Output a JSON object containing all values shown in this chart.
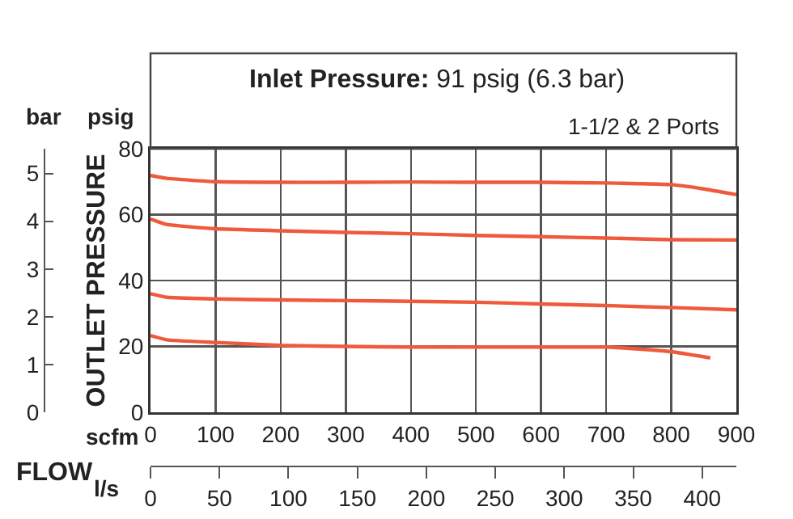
{
  "chart_data": {
    "type": "line",
    "title": "Inlet Pressure: 91 psig (6.3 bar)",
    "subtitle": "1-1/2 & 2 Ports",
    "xlabel": "scfm",
    "x2label": "l/s",
    "ylabel": "OUTLET PRESSURE",
    "y2label": "bar",
    "annotations": [
      "psig",
      "FLOW"
    ],
    "series": [
      {
        "color": "#f05a3c",
        "x": [
          0,
          25,
          100,
          200,
          300,
          400,
          500,
          600,
          700,
          750,
          800,
          850,
          900
        ],
        "values": [
          71.9,
          71,
          70,
          69.8,
          69.8,
          69.9,
          69.8,
          69.8,
          69.6,
          69.4,
          69.1,
          67.8,
          66.1
        ]
      },
      {
        "color": "#f05a3c",
        "x": [
          0,
          25,
          100,
          200,
          300,
          400,
          500,
          600,
          700,
          800,
          900
        ],
        "values": [
          58.7,
          57,
          55.7,
          55.1,
          54.6,
          54.2,
          53.7,
          53.3,
          52.9,
          52.4,
          52.3
        ]
      },
      {
        "color": "#f05a3c",
        "x": [
          0,
          25,
          100,
          200,
          300,
          400,
          500,
          600,
          700,
          800,
          900
        ],
        "values": [
          36,
          34.9,
          34.4,
          34.1,
          33.9,
          33.7,
          33.4,
          32.9,
          32.4,
          31.8,
          31.1
        ]
      },
      {
        "color": "#f05a3c",
        "x": [
          0,
          25,
          100,
          200,
          300,
          400,
          500,
          600,
          700,
          750,
          800,
          860
        ],
        "values": [
          23.3,
          22,
          21.2,
          20.3,
          20,
          19.8,
          19.8,
          19.8,
          19.8,
          19.2,
          18.4,
          16.5
        ]
      }
    ],
    "xlim": [
      0,
      900
    ],
    "xticks": [
      0,
      100,
      200,
      300,
      400,
      500,
      600,
      700,
      800,
      900
    ],
    "ylim": [
      0,
      80
    ],
    "yticks": [
      0,
      20,
      40,
      60,
      80
    ],
    "y2lim": [
      0,
      5.516
    ],
    "y2ticks": [
      0,
      1,
      2,
      3,
      4,
      5
    ],
    "x2lim": [
      0,
      424.8
    ],
    "x2ticks": [
      0,
      50,
      100,
      150,
      200,
      250,
      300,
      350,
      400
    ],
    "grid": true
  }
}
